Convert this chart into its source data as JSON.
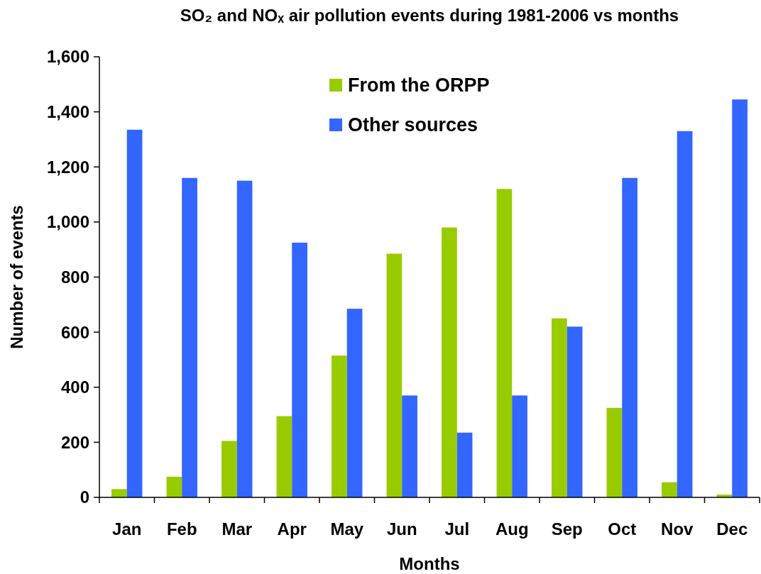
{
  "chart_data": {
    "type": "bar",
    "title": "SO₂ and NOₓ air pollution events during 1981-2006 vs months",
    "xlabel": "Months",
    "ylabel": "Number of events",
    "categories": [
      "Jan",
      "Feb",
      "Mar",
      "Apr",
      "May",
      "Jun",
      "Jul",
      "Aug",
      "Sep",
      "Oct",
      "Nov",
      "Dec"
    ],
    "series": [
      {
        "name": "From the ORPP",
        "color": "#99cc00",
        "values": [
          30,
          75,
          205,
          295,
          515,
          885,
          980,
          1120,
          650,
          325,
          55,
          10
        ]
      },
      {
        "name": "Other sources",
        "color": "#3366ff",
        "values": [
          1335,
          1160,
          1150,
          925,
          685,
          370,
          235,
          370,
          620,
          1160,
          1330,
          1445
        ]
      }
    ],
    "ylim": [
      0,
      1600
    ],
    "yticks": [
      0,
      200,
      400,
      600,
      800,
      {
        "value": 1000,
        "label": "1,000"
      },
      {
        "value": 1200,
        "label": "1,200"
      },
      {
        "value": 1400,
        "label": "1,400"
      },
      {
        "value": 1600,
        "label": "1,600"
      }
    ],
    "grid": false,
    "legend": "top"
  }
}
